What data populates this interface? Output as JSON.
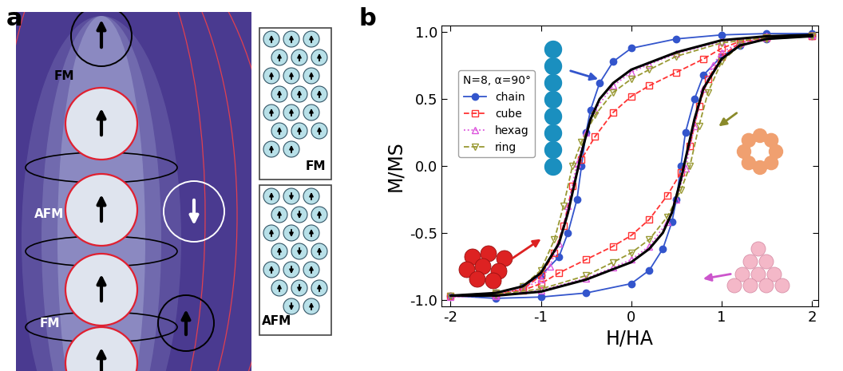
{
  "panel_labels": [
    "a",
    "b"
  ],
  "panel_a": {
    "field_labels": [
      "FM",
      "AFM",
      "FM"
    ],
    "boxes": [
      "FM",
      "AFM"
    ]
  },
  "chart_data": {
    "type": "line",
    "xlabel": "H/HA",
    "ylabel": "M/MS",
    "legend_title": "N=8, α=90°",
    "legend": "upper left",
    "xlim": [
      -2.1,
      2.07
    ],
    "xticks": [
      -2,
      -1,
      0,
      1,
      2
    ],
    "ylim": [
      -1.05,
      1.05
    ],
    "yticks": [
      -1.0,
      -0.5,
      0.0,
      0.5,
      1.0
    ],
    "series": [
      {
        "name": "chain",
        "color": "#3355cc",
        "marker": "o",
        "line_style": "solid",
        "x": [
          2,
          1.5,
          1,
          0.5,
          0,
          -0.2,
          -0.35,
          -0.45,
          -0.5,
          -0.55,
          -0.6,
          -0.7,
          -0.8,
          -1.0,
          -1.2,
          -1.5,
          -2,
          -1.5,
          -1,
          -0.5,
          0,
          0.2,
          0.35,
          0.45,
          0.5,
          0.55,
          0.6,
          0.7,
          0.8,
          1.0,
          1.2,
          1.5,
          2
        ],
        "values": [
          0.99,
          0.99,
          0.98,
          0.95,
          0.88,
          0.78,
          0.62,
          0.42,
          0.25,
          0.0,
          -0.25,
          -0.5,
          -0.68,
          -0.82,
          -0.9,
          -0.95,
          -0.97,
          -0.99,
          -0.98,
          -0.95,
          -0.88,
          -0.78,
          -0.62,
          -0.42,
          -0.25,
          0.0,
          0.25,
          0.5,
          0.68,
          0.82,
          0.9,
          0.95,
          0.97
        ]
      },
      {
        "name": "cube",
        "color": "#ff3333",
        "marker": "s",
        "line_style": "dashed",
        "x": [
          2,
          1.5,
          1.2,
          1.0,
          0.8,
          0.5,
          0.2,
          0,
          -0.2,
          -0.4,
          -0.55,
          -0.65,
          -0.75,
          -0.85,
          -1.0,
          -1.2,
          -1.5,
          -2,
          -1.5,
          -1.2,
          -1.0,
          -0.8,
          -0.5,
          -0.2,
          0,
          0.2,
          0.4,
          0.55,
          0.65,
          0.75,
          0.85,
          1.0,
          1.2,
          1.5,
          2
        ],
        "values": [
          0.97,
          0.96,
          0.93,
          0.88,
          0.8,
          0.7,
          0.6,
          0.52,
          0.4,
          0.22,
          0.05,
          -0.15,
          -0.45,
          -0.65,
          -0.82,
          -0.92,
          -0.96,
          -0.97,
          -0.96,
          -0.93,
          -0.88,
          -0.8,
          -0.7,
          -0.6,
          -0.52,
          -0.4,
          -0.22,
          -0.05,
          0.15,
          0.45,
          0.65,
          0.82,
          0.92,
          0.96,
          0.97
        ]
      },
      {
        "name": "hexag",
        "color": "#dd55dd",
        "marker": "^",
        "line_style": "dotted",
        "x": [
          2,
          1.5,
          1,
          0.5,
          0.2,
          0,
          -0.2,
          -0.4,
          -0.5,
          -0.6,
          -0.7,
          -0.8,
          -0.9,
          -1.0,
          -1.2,
          -1.5,
          -2,
          -1.5,
          -1,
          -0.5,
          -0.2,
          0,
          0.2,
          0.4,
          0.5,
          0.6,
          0.7,
          0.8,
          0.9,
          1.0,
          1.2,
          1.5,
          2
        ],
        "values": [
          0.98,
          0.97,
          0.93,
          0.84,
          0.76,
          0.7,
          0.6,
          0.42,
          0.25,
          0.02,
          -0.3,
          -0.58,
          -0.75,
          -0.85,
          -0.92,
          -0.96,
          -0.98,
          -0.97,
          -0.93,
          -0.84,
          -0.76,
          -0.7,
          -0.6,
          -0.42,
          -0.25,
          -0.02,
          0.3,
          0.58,
          0.75,
          0.85,
          0.92,
          0.96,
          0.98
        ]
      },
      {
        "name": "ring",
        "color": "#999933",
        "marker": "v",
        "line_style": "dashed",
        "x": [
          2,
          1.5,
          1,
          0.5,
          0.2,
          0,
          -0.2,
          -0.4,
          -0.55,
          -0.65,
          -0.75,
          -0.85,
          -1.0,
          -1.2,
          -1.5,
          -2,
          -1.5,
          -1,
          -0.5,
          -0.2,
          0,
          0.2,
          0.4,
          0.55,
          0.65,
          0.75,
          0.85,
          1.0,
          1.2,
          1.5,
          2
        ],
        "values": [
          0.97,
          0.96,
          0.92,
          0.82,
          0.72,
          0.65,
          0.55,
          0.38,
          0.18,
          0.0,
          -0.3,
          -0.55,
          -0.78,
          -0.9,
          -0.95,
          -0.97,
          -0.96,
          -0.92,
          -0.82,
          -0.72,
          -0.65,
          -0.55,
          -0.38,
          -0.18,
          0.0,
          0.3,
          0.55,
          0.78,
          0.9,
          0.95,
          0.97
        ]
      },
      {
        "color": "#000000",
        "line_style": "solid",
        "x": [
          2,
          1.5,
          1,
          0.5,
          0,
          -0.2,
          -0.35,
          -0.45,
          -0.55,
          -0.6,
          -0.7,
          -0.8,
          -1.0,
          -1.2,
          -1.5,
          -2,
          -1.5,
          -1,
          -0.5,
          0,
          0.2,
          0.35,
          0.45,
          0.55,
          0.6,
          0.7,
          0.8,
          1.0,
          1.2,
          1.5,
          2
        ],
        "values": [
          0.98,
          0.97,
          0.94,
          0.85,
          0.72,
          0.62,
          0.5,
          0.35,
          0.1,
          -0.05,
          -0.35,
          -0.58,
          -0.8,
          -0.9,
          -0.95,
          -0.97,
          -0.97,
          -0.94,
          -0.85,
          -0.72,
          -0.62,
          -0.5,
          -0.35,
          -0.1,
          0.05,
          0.35,
          0.58,
          0.8,
          0.9,
          0.95,
          0.97
        ]
      }
    ]
  }
}
